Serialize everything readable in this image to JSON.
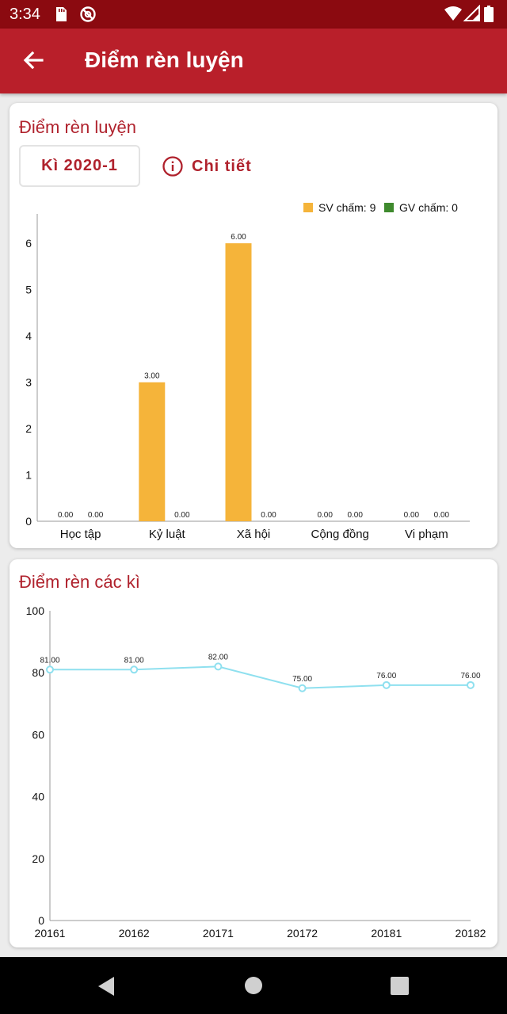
{
  "status_bar": {
    "time": "3:34",
    "icons": [
      "sd-card-icon",
      "data-saver-icon",
      "wifi-icon",
      "signal-icon",
      "battery-icon"
    ]
  },
  "app_bar": {
    "title": "Điểm rèn luyện",
    "back_icon": "arrow-back-icon"
  },
  "colors": {
    "accent": "#b91f2a",
    "status_bar": "#8b0a10",
    "sv_series": "#f5b43a",
    "gv_series": "#3f8a2e",
    "line_series": "#8fe0ef"
  },
  "score_card": {
    "title": "Điểm rèn luyện",
    "semester_label": "Kì 2020-1",
    "detail_label": "Chi tiết",
    "detail_icon": "info-icon"
  },
  "history_card": {
    "title": "Điểm rèn các kì"
  },
  "chart_data": [
    {
      "type": "bar",
      "categories": [
        "Học tập",
        "Kỷ luật",
        "Xã hội",
        "Cộng đồng",
        "Vi phạm"
      ],
      "series": [
        {
          "name": "SV chấm: 9",
          "color": "#f5b43a",
          "values": [
            0,
            3,
            6,
            0,
            0
          ],
          "labels": [
            "0.00",
            "3.00",
            "6.00",
            "0.00",
            "0.00"
          ]
        },
        {
          "name": "GV chấm: 0",
          "color": "#3f8a2e",
          "values": [
            0,
            0,
            0,
            0,
            0
          ],
          "labels": [
            "0.00",
            "0.00",
            "0.00",
            "0.00",
            "0.00"
          ]
        }
      ],
      "yticks": [
        "0",
        "1",
        "2",
        "3",
        "4",
        "5",
        "6"
      ],
      "ylim": [
        0,
        6.6
      ],
      "legend": "top-right",
      "grid": false
    },
    {
      "type": "line",
      "categories": [
        "20161",
        "20162",
        "20171",
        "20172",
        "20181",
        "20182"
      ],
      "series": [
        {
          "color": "#8fe0ef",
          "values": [
            81,
            81,
            82,
            75,
            76,
            76
          ],
          "labels": [
            "81.00",
            "81.00",
            "82.00",
            "75.00",
            "76.00",
            "76.00"
          ]
        }
      ],
      "yticks": [
        "0",
        "20",
        "40",
        "60",
        "80",
        "100"
      ],
      "ylim": [
        0,
        100
      ],
      "grid": false
    }
  ],
  "nav_bar": {
    "icons": [
      "nav-back-icon",
      "nav-home-icon",
      "nav-recents-icon"
    ]
  }
}
